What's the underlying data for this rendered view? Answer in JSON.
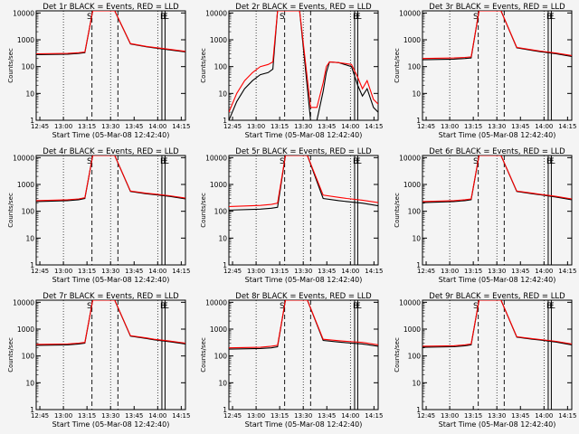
{
  "figure": {
    "xlabel": "Start Time (05-Mar-08 12:42:40)",
    "ylabel": "Counts/sec",
    "x_ticks": [
      "12:45",
      "13:00",
      "13:15",
      "13:30",
      "13:45",
      "14:00",
      "14:15"
    ],
    "y_ticks": [
      "1",
      "10",
      "100",
      "1000",
      "10000"
    ],
    "markers": [
      "S",
      "E",
      "F",
      "L"
    ]
  },
  "colors": {
    "events": "#000000",
    "lld": "#ff0000",
    "background": "#f4f4f4"
  },
  "chart_data": [
    {
      "type": "line",
      "title": "Det 1r BLACK = Events, RED = LLD",
      "xlabel": "Start Time (05-Mar-08 12:42:40)",
      "ylabel": "Counts/sec",
      "yscale": "log",
      "ylim": [
        1,
        12000
      ],
      "xlim_min": [
        0,
        95
      ],
      "series": [
        {
          "role": "events",
          "x": [
            0,
            20,
            27,
            31,
            36,
            50,
            60,
            70,
            75,
            85,
            95
          ],
          "y": [
            280,
            290,
            310,
            330,
            12000,
            12000,
            700,
            550,
            500,
            420,
            350
          ]
        },
        {
          "role": "lld",
          "x": [
            0,
            20,
            27,
            31,
            36,
            50,
            60,
            70,
            75,
            85,
            95
          ],
          "y": [
            300,
            310,
            330,
            350,
            12000,
            12000,
            720,
            570,
            520,
            440,
            370
          ]
        }
      ]
    },
    {
      "type": "line",
      "title": "Det 2r BLACK = Events, RED = LLD",
      "xlabel": "Start Time (05-Mar-08 12:42:40)",
      "ylabel": "Counts/sec",
      "yscale": "log",
      "ylim": [
        1,
        12000
      ],
      "xlim_min": [
        0,
        95
      ],
      "series": [
        {
          "role": "events",
          "x": [
            0,
            5,
            10,
            15,
            20,
            25,
            28,
            31,
            35,
            45,
            52,
            56,
            60,
            62,
            64,
            70,
            78,
            82,
            85,
            88,
            92,
            95
          ],
          "y": [
            1,
            5,
            15,
            30,
            50,
            60,
            80,
            12000,
            12000,
            12000,
            1,
            1,
            12,
            60,
            150,
            140,
            100,
            20,
            8,
            15,
            3,
            2
          ]
        },
        {
          "role": "lld",
          "x": [
            0,
            5,
            10,
            15,
            20,
            25,
            28,
            31,
            35,
            45,
            52,
            56,
            60,
            62,
            64,
            70,
            78,
            82,
            85,
            88,
            92,
            95
          ],
          "y": [
            2,
            10,
            30,
            60,
            100,
            120,
            150,
            12000,
            12000,
            12000,
            3,
            3,
            25,
            100,
            150,
            140,
            120,
            40,
            15,
            30,
            6,
            4
          ]
        }
      ]
    },
    {
      "type": "line",
      "title": "Det 3r BLACK = Events, RED = LLD",
      "xlabel": "Start Time (05-Mar-08 12:42:40)",
      "ylabel": "Counts/sec",
      "yscale": "log",
      "ylim": [
        1,
        12000
      ],
      "xlim_min": [
        0,
        95
      ],
      "series": [
        {
          "role": "events",
          "x": [
            0,
            20,
            27,
            31,
            36,
            50,
            60,
            70,
            75,
            85,
            95
          ],
          "y": [
            180,
            190,
            200,
            210,
            12000,
            12000,
            500,
            400,
            360,
            300,
            240
          ]
        },
        {
          "role": "lld",
          "x": [
            0,
            20,
            27,
            31,
            36,
            50,
            60,
            70,
            75,
            85,
            95
          ],
          "y": [
            200,
            210,
            220,
            230,
            12000,
            12000,
            520,
            420,
            380,
            320,
            260
          ]
        }
      ]
    },
    {
      "type": "line",
      "title": "Det 4r BLACK = Events, RED = LLD",
      "xlabel": "Start Time (05-Mar-08 12:42:40)",
      "ylabel": "Counts/sec",
      "yscale": "log",
      "ylim": [
        1,
        12000
      ],
      "xlim_min": [
        0,
        95
      ],
      "series": [
        {
          "role": "events",
          "x": [
            0,
            20,
            27,
            31,
            36,
            50,
            60,
            70,
            75,
            85,
            95
          ],
          "y": [
            230,
            250,
            270,
            300,
            12000,
            12000,
            550,
            450,
            420,
            360,
            290
          ]
        },
        {
          "role": "lld",
          "x": [
            0,
            20,
            27,
            31,
            36,
            50,
            60,
            70,
            75,
            85,
            95
          ],
          "y": [
            250,
            270,
            290,
            320,
            12000,
            12000,
            570,
            470,
            440,
            380,
            310
          ]
        }
      ]
    },
    {
      "type": "line",
      "title": "Det 5r BLACK = Events, RED = LLD",
      "xlabel": "Start Time (05-Mar-08 12:42:40)",
      "ylabel": "Counts/sec",
      "yscale": "log",
      "ylim": [
        1,
        12000
      ],
      "xlim_min": [
        0,
        95
      ],
      "series": [
        {
          "role": "events",
          "x": [
            0,
            20,
            27,
            31,
            36,
            50,
            60,
            70,
            75,
            85,
            95
          ],
          "y": [
            110,
            120,
            130,
            140,
            12000,
            12000,
            300,
            250,
            230,
            200,
            160
          ]
        },
        {
          "role": "lld",
          "x": [
            0,
            20,
            27,
            31,
            36,
            50,
            60,
            70,
            75,
            85,
            95
          ],
          "y": [
            150,
            165,
            180,
            200,
            12000,
            12000,
            400,
            330,
            300,
            260,
            210
          ]
        }
      ]
    },
    {
      "type": "line",
      "title": "Det 6r BLACK = Events, RED = LLD",
      "xlabel": "Start Time (05-Mar-08 12:42:40)",
      "ylabel": "Counts/sec",
      "yscale": "log",
      "ylim": [
        1,
        12000
      ],
      "xlim_min": [
        0,
        95
      ],
      "series": [
        {
          "role": "events",
          "x": [
            0,
            20,
            27,
            31,
            36,
            50,
            60,
            70,
            75,
            85,
            95
          ],
          "y": [
            210,
            230,
            250,
            270,
            12000,
            12000,
            550,
            450,
            410,
            340,
            270
          ]
        },
        {
          "role": "lld",
          "x": [
            0,
            20,
            27,
            31,
            36,
            50,
            60,
            70,
            75,
            85,
            95
          ],
          "y": [
            230,
            250,
            270,
            290,
            12000,
            12000,
            570,
            470,
            430,
            360,
            290
          ]
        }
      ]
    },
    {
      "type": "line",
      "title": "Det 7r BLACK = Events, RED = LLD",
      "xlabel": "Start Time (05-Mar-08 12:42:40)",
      "ylabel": "Counts/sec",
      "yscale": "log",
      "ylim": [
        1,
        12000
      ],
      "xlim_min": [
        0,
        95
      ],
      "series": [
        {
          "role": "events",
          "x": [
            0,
            20,
            27,
            31,
            36,
            50,
            60,
            70,
            75,
            85,
            95
          ],
          "y": [
            250,
            260,
            280,
            300,
            12000,
            12000,
            550,
            450,
            400,
            340,
            280
          ]
        },
        {
          "role": "lld",
          "x": [
            0,
            20,
            27,
            31,
            36,
            50,
            60,
            70,
            75,
            85,
            95
          ],
          "y": [
            270,
            280,
            300,
            320,
            12000,
            12000,
            570,
            470,
            420,
            360,
            300
          ]
        }
      ]
    },
    {
      "type": "line",
      "title": "Det 8r BLACK = Events, RED = LLD",
      "xlabel": "Start Time (05-Mar-08 12:42:40)",
      "ylabel": "Counts/sec",
      "yscale": "log",
      "ylim": [
        1,
        12000
      ],
      "xlim_min": [
        0,
        95
      ],
      "series": [
        {
          "role": "events",
          "x": [
            0,
            20,
            27,
            31,
            36,
            50,
            60,
            70,
            75,
            85,
            95
          ],
          "y": [
            180,
            190,
            200,
            220,
            12000,
            12000,
            380,
            330,
            310,
            280,
            230
          ]
        },
        {
          "role": "lld",
          "x": [
            0,
            20,
            27,
            31,
            36,
            50,
            60,
            70,
            75,
            85,
            95
          ],
          "y": [
            200,
            210,
            230,
            250,
            12000,
            12000,
            420,
            370,
            350,
            320,
            260
          ]
        }
      ]
    },
    {
      "type": "line",
      "title": "Det 9r BLACK = Events, RED = LLD",
      "xlabel": "Start Time (05-Mar-08 12:42:40)",
      "ylabel": "Counts/sec",
      "yscale": "log",
      "ylim": [
        1,
        12000
      ],
      "xlim_min": [
        0,
        95
      ],
      "series": [
        {
          "role": "events",
          "x": [
            0,
            20,
            27,
            31,
            36,
            50,
            60,
            70,
            75,
            85,
            95
          ],
          "y": [
            210,
            220,
            240,
            260,
            12000,
            12000,
            500,
            420,
            390,
            330,
            260
          ]
        },
        {
          "role": "lld",
          "x": [
            0,
            20,
            27,
            31,
            36,
            50,
            60,
            70,
            75,
            85,
            95
          ],
          "y": [
            230,
            240,
            260,
            280,
            12000,
            12000,
            520,
            440,
            410,
            350,
            280
          ]
        }
      ]
    }
  ]
}
